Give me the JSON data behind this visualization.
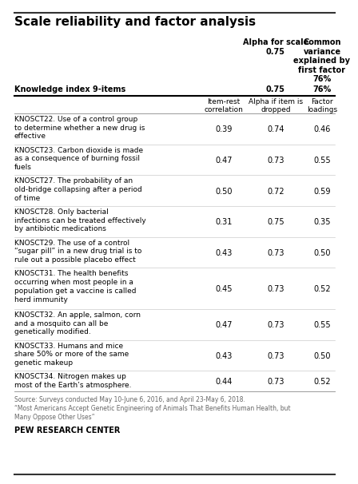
{
  "title": "Scale reliability and factor analysis",
  "col_header_alpha": "Alpha for scale\n0.75",
  "col_header_common": "Common\nvariance\nexplained by\nfirst factor\n76%",
  "col_label": "Knowledge index 9-items",
  "subheader_v1": "Item-rest\ncorrelation",
  "subheader_v2": "Alpha if item is\ndropped",
  "subheader_v3": "Factor\nloadings",
  "rows": [
    {
      "label": "KNOSCT22. Use of a control group\nto determine whether a new drug is\neffective",
      "v1": "0.39",
      "v2": "0.74",
      "v3": "0.46"
    },
    {
      "label": "KNOSCT23. Carbon dioxide is made\nas a consequence of burning fossil\nfuels",
      "v1": "0.47",
      "v2": "0.73",
      "v3": "0.55"
    },
    {
      "label": "KNOSCT27. The probability of an\nold-bridge collapsing after a period\nof time",
      "v1": "0.50",
      "v2": "0.72",
      "v3": "0.59"
    },
    {
      "label": "KNOSCT28. Only bacterial\ninfections can be treated effectively\nby antibiotic medications",
      "v1": "0.31",
      "v2": "0.75",
      "v3": "0.35"
    },
    {
      "label": "KNOSCT29. The use of a control\n“sugar pill” in a new drug trial is to\nrule out a possible placebo effect",
      "v1": "0.43",
      "v2": "0.73",
      "v3": "0.50"
    },
    {
      "label": "KNOSCT31. The health benefits\noccurring when most people in a\npopulation get a vaccine is called\nherd immunity",
      "v1": "0.45",
      "v2": "0.73",
      "v3": "0.52"
    },
    {
      "label": "KNOSCT32. An apple, salmon, corn\nand a mosquito can all be\ngenetically modified.",
      "v1": "0.47",
      "v2": "0.73",
      "v3": "0.55"
    },
    {
      "label": "KNOSCT33. Humans and mice\nshare 50% or more of the same\ngenetic makeup",
      "v1": "0.43",
      "v2": "0.73",
      "v3": "0.50"
    },
    {
      "label": "KNOSCT34. Nitrogen makes up\nmost of the Earth’s atmosphere.",
      "v1": "0.44",
      "v2": "0.73",
      "v3": "0.52"
    }
  ],
  "source_line1": "Source: Surveys conducted May 10-June 6, 2016, and April 23-May 6, 2018.",
  "source_line2": "“Most Americans Accept Genetic Engineering of Animals That Benefits Human Health, but\nMany Oppose Other Uses”",
  "footer": "PEW RESEARCH CENTER",
  "bg_color": "#ffffff",
  "line_color_thick": "#000000",
  "line_color_thin": "#cccccc",
  "source_color": "#666666",
  "title_fontsize": 11,
  "header_fontsize": 7,
  "subheader_fontsize": 6.5,
  "label_fontsize": 6.5,
  "value_fontsize": 7,
  "source_fontsize": 5.5,
  "footer_fontsize": 7
}
